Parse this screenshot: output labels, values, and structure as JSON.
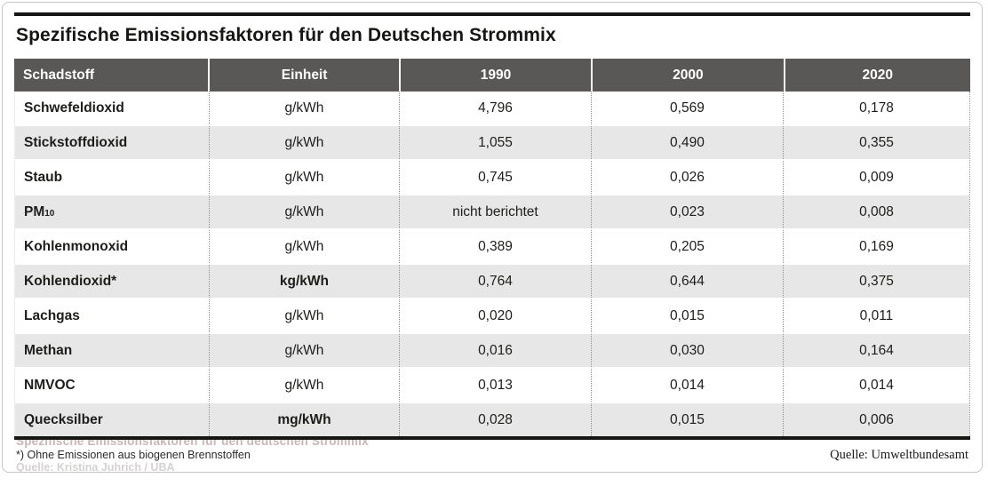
{
  "chart_data": {
    "type": "table",
    "title": "Spezifische Emissionsfaktoren für den Deutschen Strommix",
    "columns": [
      "Schadstoff",
      "Einheit",
      "1990",
      "2000",
      "2020"
    ],
    "rows": [
      [
        "Schwefeldioxid",
        "g/kWh",
        "4,796",
        "0,569",
        "0,178"
      ],
      [
        "Stickstoffdioxid",
        "g/kWh",
        "1,055",
        "0,490",
        "0,355"
      ],
      [
        "Staub",
        "g/kWh",
        "0,745",
        "0,026",
        "0,009"
      ],
      [
        "PM10",
        "g/kWh",
        "nicht berichtet",
        "0,023",
        "0,008"
      ],
      [
        "Kohlenmonoxid",
        "g/kWh",
        "0,389",
        "0,205",
        "0,169"
      ],
      [
        "Kohlendioxid*",
        "kg/kWh",
        "0,764",
        "0,644",
        "0,375"
      ],
      [
        "Lachgas",
        "g/kWh",
        "0,020",
        "0,015",
        "0,011"
      ],
      [
        "Methan",
        "g/kWh",
        "0,016",
        "0,030",
        "0,164"
      ],
      [
        "NMVOC",
        "g/kWh",
        "0,013",
        "0,014",
        "0,014"
      ],
      [
        "Quecksilber",
        "mg/kWh",
        "0,028",
        "0,015",
        "0,006"
      ]
    ],
    "footnote": "*) Ohne Emissionen aus biogenen Brennstoffen",
    "source": "Quelle: Umweltbundesamt",
    "layout_hints": {
      "header_bg": "#595857",
      "alt_row_bg": "#e7e7e7",
      "rule_color": "#161615",
      "bold_unit_rows": [
        "Kohlendioxid*",
        "Quecksilber"
      ]
    }
  },
  "display": {
    "pm10_label": "PM",
    "pm10_sub": "10"
  },
  "footer_ghost": {
    "caption": "Spezifische Emissionsfaktoren für den deutschen Strommix",
    "source": "Quelle: Kristina Juhrich / UBA"
  }
}
